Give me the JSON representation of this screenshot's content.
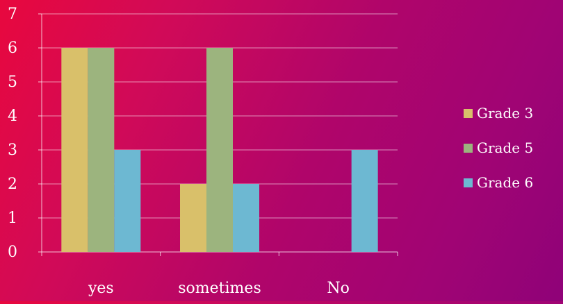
{
  "chart_data": {
    "type": "bar",
    "title": "",
    "xlabel": "",
    "ylabel": "",
    "categories": [
      "yes",
      "sometimes",
      "No"
    ],
    "series": [
      {
        "name": "Grade 3",
        "color": "#d9c06a",
        "values": [
          6,
          2,
          0
        ]
      },
      {
        "name": "Grade 5",
        "color": "#9cb47e",
        "values": [
          6,
          6,
          0
        ]
      },
      {
        "name": "Grade 6",
        "color": "#6db8d2",
        "values": [
          3,
          2,
          3
        ]
      }
    ],
    "ylim": [
      0,
      7
    ],
    "yticks": [
      0,
      1,
      2,
      3,
      4,
      5,
      6,
      7
    ],
    "grid": true,
    "legend": "right"
  }
}
